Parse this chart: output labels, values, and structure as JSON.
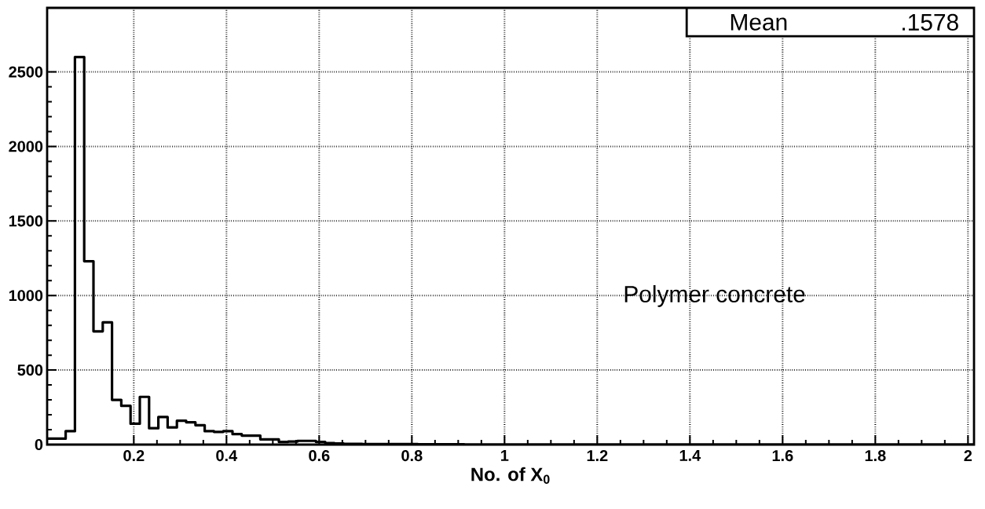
{
  "chart_data": {
    "type": "histogram",
    "xlabel": "No. of X$_{0}$",
    "annotations": [
      "Mean",
      ".1578",
      "Polymer concrete"
    ],
    "bins": [
      0.013,
      0.033,
      0.053,
      0.073,
      0.093,
      0.113,
      0.133,
      0.153,
      0.173,
      0.193,
      0.213,
      0.233,
      0.253,
      0.273,
      0.293,
      0.313,
      0.333,
      0.353,
      0.373,
      0.393,
      0.413,
      0.433,
      0.453,
      0.473,
      0.493,
      0.513,
      0.533,
      0.553,
      0.573,
      0.593,
      0.613,
      0.633,
      0.653,
      0.673,
      0.693,
      0.713,
      0.733,
      0.753,
      0.773,
      0.793,
      0.813,
      0.833,
      0.853,
      0.873,
      0.893,
      0.913,
      0.933,
      0.953,
      0.973,
      0.993,
      1.013,
      1.033,
      1.053,
      1.073,
      1.093,
      1.113,
      1.133,
      1.153,
      1.173,
      1.193,
      1.213,
      1.233,
      1.253,
      1.273,
      1.293,
      1.313,
      1.333,
      1.353,
      1.373,
      1.393,
      1.413,
      1.433,
      1.453,
      1.473,
      1.493,
      1.513,
      1.533,
      1.553,
      1.573,
      1.593,
      1.613,
      1.633,
      1.653,
      1.673,
      1.693,
      1.713,
      1.733,
      1.753,
      1.773,
      1.793,
      1.813,
      1.833,
      1.853,
      1.873,
      1.893,
      1.913,
      1.933,
      1.953,
      1.973,
      1.993,
      2.013
    ],
    "values": [
      40,
      40,
      90,
      2600,
      1230,
      760,
      820,
      300,
      260,
      140,
      320,
      110,
      185,
      115,
      160,
      150,
      130,
      90,
      85,
      90,
      70,
      60,
      60,
      35,
      35,
      18,
      20,
      25,
      25,
      18,
      10,
      8,
      5,
      5,
      4,
      3,
      3,
      3,
      3,
      3,
      2,
      2,
      2,
      2,
      2,
      0,
      0,
      0,
      0,
      0,
      0,
      0,
      0,
      0,
      0,
      0,
      0,
      0,
      0,
      0,
      0,
      0,
      0,
      0,
      0,
      0,
      0,
      0,
      0,
      0,
      0,
      0,
      0,
      0,
      0,
      0,
      0,
      0,
      0,
      0,
      0,
      0,
      0,
      0,
      0,
      0,
      0,
      0,
      0,
      0,
      0,
      0,
      0,
      0,
      0,
      0,
      0,
      0,
      0,
      0
    ],
    "color": "#000000",
    "xlim": [
      0.013,
      2.013
    ],
    "ylim": [
      0,
      2930
    ],
    "xticks": [
      0.2,
      0.4,
      0.6,
      0.8,
      1,
      1.2,
      1.4,
      1.6,
      1.8,
      2
    ],
    "yticks": [
      0,
      500,
      1000,
      1500,
      2000,
      2500
    ],
    "grid": true
  }
}
